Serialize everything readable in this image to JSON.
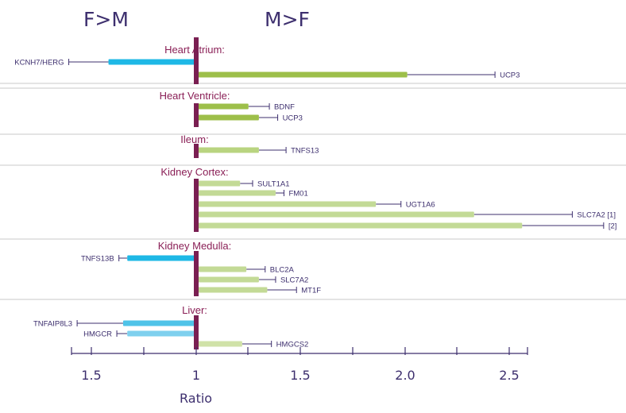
{
  "header": {
    "left": "F>M",
    "right": "M>F"
  },
  "chart_data": {
    "type": "bar",
    "orientation": "horizontal",
    "title": "",
    "xlabel": "Ratio",
    "ylabel": "",
    "center": 1,
    "xticks": [
      "1.5",
      "1",
      "1.5",
      "2.0",
      "2.5"
    ],
    "x_scale_note": "diverging ratio axis: F>M to the left of 1, M>F to the right of 1",
    "groups": [
      {
        "name": "Heart Atrium:",
        "bars": [
          {
            "label": "KCNH7/HERG",
            "direction": "F>M",
            "value": 1.42,
            "error": 1.61,
            "color": "#1eb8e6"
          },
          {
            "label": "UCP3",
            "direction": "M>F",
            "value": 2.01,
            "error": 2.43,
            "color": "#9dbf4a"
          }
        ]
      },
      {
        "name": "Heart Ventricle:",
        "bars": [
          {
            "label": "BDNF",
            "direction": "M>F",
            "value": 1.25,
            "error": 1.35,
            "color": "#9dbf4a"
          },
          {
            "label": "UCP3",
            "direction": "M>F",
            "value": 1.3,
            "error": 1.39,
            "color": "#9dbf4a"
          }
        ]
      },
      {
        "name": "Ileum:",
        "bars": [
          {
            "label": "TNFS13",
            "direction": "M>F",
            "value": 1.3,
            "error": 1.43,
            "color": "#b9d480"
          }
        ]
      },
      {
        "name": "Kidney Cortex:",
        "bars": [
          {
            "label": "SULT1A1",
            "direction": "M>F",
            "value": 1.21,
            "error": 1.27,
            "color": "#c3da96"
          },
          {
            "label": "FM01",
            "direction": "M>F",
            "value": 1.38,
            "error": 1.42,
            "color": "#c3da96"
          },
          {
            "label": "UGT1A6",
            "direction": "M>F",
            "value": 1.86,
            "error": 1.98,
            "color": "#c3da96"
          },
          {
            "label": "SLC7A2 [1]",
            "direction": "M>F",
            "value": 2.33,
            "error": 2.8,
            "color": "#c3da96"
          },
          {
            "label": "[2]",
            "direction": "M>F",
            "value": 2.56,
            "error": 2.95,
            "color": "#c3da96"
          }
        ]
      },
      {
        "name": "Kidney Medulla:",
        "bars": [
          {
            "label": "TNFS13B",
            "direction": "F>M",
            "value": 1.33,
            "error": 1.37,
            "color": "#1eb8e6"
          },
          {
            "label": "BLC2A",
            "direction": "M>F",
            "value": 1.24,
            "error": 1.33,
            "color": "#c3da96"
          },
          {
            "label": "SLC7A2",
            "direction": "M>F",
            "value": 1.3,
            "error": 1.38,
            "color": "#c3da96"
          },
          {
            "label": "MT1F",
            "direction": "M>F",
            "value": 1.34,
            "error": 1.48,
            "color": "#c3da96"
          }
        ]
      },
      {
        "name": "Liver:",
        "bars": [
          {
            "label": "TNFAIP8L3",
            "direction": "F>M",
            "value": 1.35,
            "error": 1.57,
            "color": "#4fc3e8"
          },
          {
            "label": "HMGCR",
            "direction": "F>M",
            "value": 1.33,
            "error": 1.38,
            "color": "#7fd0ee"
          },
          {
            "label": "HMGCS2",
            "direction": "M>F",
            "value": 1.22,
            "error": 1.36,
            "color": "#d0e2a8"
          }
        ]
      }
    ]
  }
}
